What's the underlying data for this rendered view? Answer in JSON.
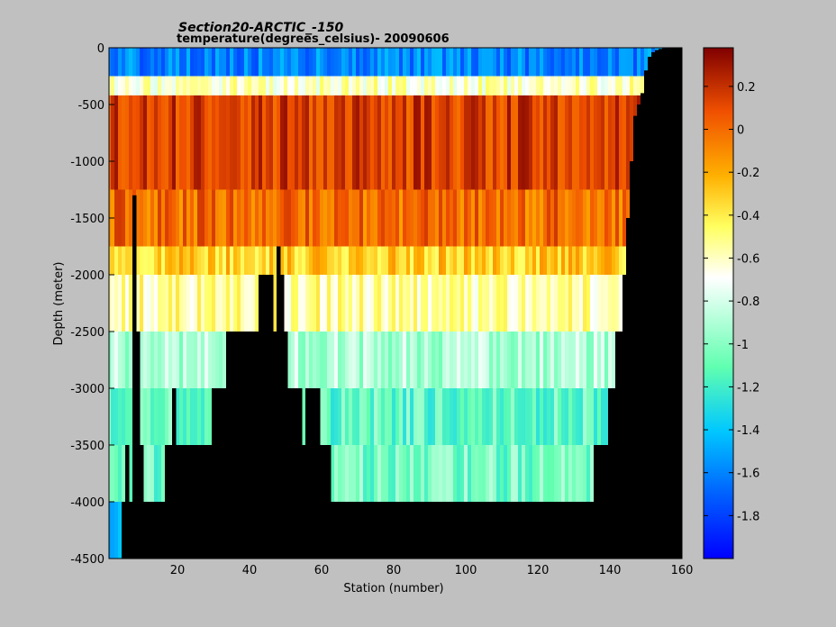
{
  "chart_data": {
    "type": "heatmap",
    "title": "Section20-ARCTIC_-150",
    "subtitle": "temperature(degrees_celsius)- 20090606",
    "xlabel": "Station (number)",
    "ylabel": "Depth (meter)",
    "xlim": [
      1,
      160
    ],
    "ylim": [
      -4500,
      0
    ],
    "xticks": [
      20,
      40,
      60,
      80,
      100,
      120,
      140,
      160
    ],
    "yticks": [
      0,
      -500,
      -1000,
      -1500,
      -2000,
      -2500,
      -3000,
      -3500,
      -4000,
      -4500
    ],
    "colorbar": {
      "range": [
        -2.0,
        0.38
      ],
      "ticks": [
        0.2,
        0,
        -0.2,
        -0.4,
        -0.6,
        -0.8,
        -1,
        -1.2,
        -1.4,
        -1.6,
        -1.8
      ],
      "colormap": "jet"
    },
    "depth_layers": [
      {
        "top": 0,
        "bottom": -250,
        "typical_temp_c": -1.6
      },
      {
        "top": -250,
        "bottom": -420,
        "typical_temp_c": -0.6
      },
      {
        "top": -420,
        "bottom": -1250,
        "typical_temp_c": 0.15
      },
      {
        "top": -1250,
        "bottom": -1750,
        "typical_temp_c": 0.0
      },
      {
        "top": -1750,
        "bottom": -2000,
        "typical_temp_c": -0.3
      },
      {
        "top": -2000,
        "bottom": -2500,
        "typical_temp_c": -0.55
      },
      {
        "top": -2500,
        "bottom": -3000,
        "typical_temp_c": -0.9
      },
      {
        "top": -3000,
        "bottom": -3500,
        "typical_temp_c": -1.1
      },
      {
        "top": -3500,
        "bottom": -4000,
        "typical_temp_c": -1.05
      },
      {
        "top": -4000,
        "bottom": -4500,
        "typical_temp_c": -1.5
      }
    ],
    "bathymetry": {
      "mask_color": "#000000",
      "stations": [
        1,
        2,
        3,
        4,
        5,
        6,
        7,
        8,
        9,
        10,
        11,
        12,
        13,
        14,
        15,
        16,
        17,
        18,
        19,
        20,
        21,
        22,
        23,
        24,
        25,
        26,
        27,
        28,
        29,
        30,
        31,
        32,
        33,
        34,
        35,
        36,
        37,
        38,
        39,
        40,
        41,
        42,
        43,
        44,
        45,
        46,
        47,
        48,
        49,
        50,
        51,
        52,
        53,
        54,
        55,
        56,
        57,
        58,
        59,
        60,
        61,
        62,
        63,
        64,
        65,
        66,
        67,
        68,
        69,
        70,
        71,
        72,
        73,
        74,
        75,
        76,
        77,
        78,
        79,
        80,
        81,
        82,
        83,
        84,
        85,
        86,
        87,
        88,
        89,
        90,
        91,
        92,
        93,
        94,
        95,
        96,
        97,
        98,
        99,
        100,
        101,
        102,
        103,
        104,
        105,
        106,
        107,
        108,
        109,
        110,
        111,
        112,
        113,
        114,
        115,
        116,
        117,
        118,
        119,
        120,
        121,
        122,
        123,
        124,
        125,
        126,
        127,
        128,
        129,
        130,
        131,
        132,
        133,
        134,
        135,
        136,
        137,
        138,
        139,
        140,
        141,
        142,
        143,
        144,
        145,
        146,
        147,
        148,
        149,
        150,
        151,
        152,
        153,
        154,
        155,
        156,
        157,
        158,
        159,
        160
      ],
      "bottom_depth_m": [
        -4500,
        -4500,
        -4500,
        -4500,
        -4000,
        -3500,
        -4000,
        -1300,
        -2500,
        -3500,
        -4000,
        -4000,
        -4000,
        -4000,
        -4000,
        -4000,
        -3500,
        -3500,
        -3000,
        -3500,
        -3500,
        -3500,
        -3500,
        -3500,
        -3500,
        -3500,
        -3500,
        -3500,
        -3500,
        -3000,
        -3000,
        -3000,
        -3000,
        -2500,
        -2500,
        -2500,
        -2500,
        -2500,
        -2500,
        -2500,
        -2500,
        -2500,
        -2000,
        -2000,
        -2000,
        -2000,
        -2500,
        -1750,
        -2000,
        -2500,
        -3000,
        -3000,
        -3000,
        -3000,
        -3500,
        -3000,
        -3000,
        -3000,
        -3000,
        -3500,
        -3500,
        -3500,
        -4000,
        -4000,
        -4000,
        -4000,
        -4000,
        -4000,
        -4000,
        -4000,
        -4000,
        -4000,
        -4000,
        -4000,
        -4000,
        -4000,
        -4000,
        -4000,
        -4000,
        -4000,
        -4000,
        -4000,
        -4000,
        -4000,
        -4000,
        -4000,
        -4000,
        -4000,
        -4000,
        -4000,
        -4000,
        -4000,
        -4000,
        -4000,
        -4000,
        -4000,
        -4000,
        -4000,
        -4000,
        -4000,
        -4000,
        -4000,
        -4000,
        -4000,
        -4000,
        -4000,
        -4000,
        -4000,
        -4000,
        -4000,
        -4000,
        -4000,
        -4000,
        -4000,
        -4000,
        -4000,
        -4000,
        -4000,
        -4000,
        -4000,
        -4000,
        -4000,
        -4000,
        -4000,
        -4000,
        -4000,
        -4000,
        -4000,
        -4000,
        -4000,
        -4000,
        -4000,
        -4000,
        -4000,
        -4000,
        -3500,
        -3500,
        -3500,
        -3500,
        -3000,
        -3000,
        -2500,
        -2500,
        -2000,
        -1500,
        -1000,
        -600,
        -500,
        -400,
        -200,
        -80,
        -40,
        -20,
        -10,
        -5,
        0,
        0,
        0,
        0,
        0
      ]
    }
  }
}
